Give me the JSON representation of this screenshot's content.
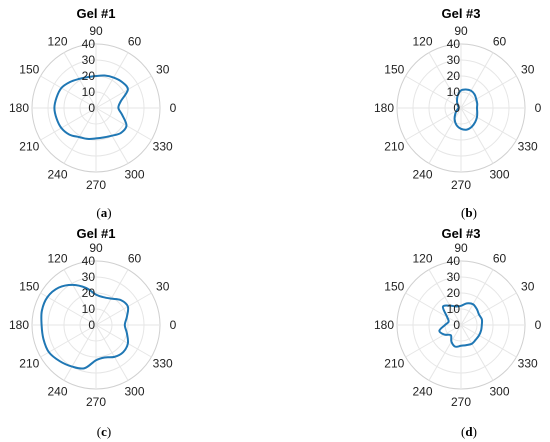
{
  "chart_data": [
    {
      "type": "polar",
      "title": "Gel #1",
      "caption_prefix": "(",
      "caption_letter": "a",
      "caption_suffix": ")",
      "rlim": [
        0,
        40
      ],
      "r_ticks": [
        "0",
        "10",
        "20",
        "30",
        "40"
      ],
      "theta_ticks": [
        "0",
        "30",
        "60",
        "90",
        "120",
        "150",
        "180",
        "210",
        "240",
        "270",
        "300",
        "330"
      ],
      "grid": true,
      "line_color": "#1f77b4",
      "theta": [
        0,
        15,
        30,
        45,
        60,
        75,
        90,
        105,
        120,
        135,
        150,
        165,
        180,
        195,
        210,
        225,
        240,
        255,
        270,
        285,
        300,
        315,
        330,
        345
      ],
      "r": [
        14,
        16,
        23,
        23,
        22,
        21,
        20,
        20,
        21,
        23,
        25,
        25.5,
        26,
        25.5,
        25,
        23.5,
        21,
        20,
        19,
        19,
        20,
        22,
        22,
        17
      ]
    },
    {
      "type": "polar",
      "title": "Gel #3",
      "caption_prefix": "(",
      "caption_letter": "b",
      "caption_suffix": ")",
      "rlim": [
        0,
        40
      ],
      "r_ticks": [
        "0",
        "10",
        "20",
        "30",
        "40"
      ],
      "theta_ticks": [
        "0",
        "30",
        "60",
        "90",
        "120",
        "150",
        "180",
        "210",
        "240",
        "270",
        "300",
        "330"
      ],
      "grid": true,
      "line_color": "#1f77b4",
      "theta": [
        0,
        15,
        30,
        45,
        60,
        75,
        90,
        105,
        120,
        135,
        150,
        165,
        180,
        195,
        210,
        225,
        240,
        255,
        270,
        285,
        300,
        315,
        330,
        345
      ],
      "r": [
        10,
        10.5,
        11,
        12,
        12.5,
        12,
        11,
        8,
        5,
        3,
        2,
        1.5,
        1.5,
        2,
        3,
        5,
        8,
        11,
        13,
        14,
        13.5,
        12.5,
        11.5,
        10.5
      ]
    },
    {
      "type": "polar",
      "title": "Gel #1",
      "caption_prefix": "(",
      "caption_letter": "c",
      "caption_suffix": ")",
      "rlim": [
        0,
        40
      ],
      "r_ticks": [
        "0",
        "10",
        "20",
        "30",
        "40"
      ],
      "theta_ticks": [
        "0",
        "30",
        "60",
        "90",
        "120",
        "150",
        "180",
        "210",
        "240",
        "270",
        "300",
        "330"
      ],
      "grid": true,
      "line_color": "#1f77b4",
      "theta": [
        0,
        15,
        30,
        45,
        60,
        75,
        90,
        105,
        120,
        135,
        150,
        165,
        180,
        195,
        210,
        225,
        240,
        255,
        270,
        285,
        300,
        315,
        330,
        345
      ],
      "r": [
        18,
        20,
        23,
        22,
        19,
        18,
        19,
        24,
        29,
        33,
        35,
        35,
        34,
        34,
        34,
        32,
        30,
        28,
        22,
        21,
        23,
        24,
        23,
        20
      ]
    },
    {
      "type": "polar",
      "title": "Gel #3",
      "caption_prefix": "(",
      "caption_letter": "d",
      "caption_suffix": ")",
      "rlim": [
        0,
        40
      ],
      "r_ticks": [
        "0",
        "10",
        "20",
        "30",
        "40"
      ],
      "theta_ticks": [
        "0",
        "30",
        "60",
        "90",
        "120",
        "150",
        "180",
        "210",
        "240",
        "270",
        "300",
        "330"
      ],
      "grid": true,
      "line_color": "#1f77b4",
      "theta": [
        0,
        15,
        30,
        45,
        60,
        75,
        90,
        105,
        120,
        135,
        150,
        165,
        180,
        195,
        210,
        225,
        240,
        255,
        270,
        285,
        300,
        315,
        330,
        345
      ],
      "r": [
        13,
        13.5,
        13,
        14,
        15,
        14,
        12,
        12,
        14,
        16,
        10,
        8,
        10,
        14,
        12,
        9,
        12,
        14,
        13,
        13,
        13.5,
        13,
        13,
        13
      ]
    }
  ]
}
